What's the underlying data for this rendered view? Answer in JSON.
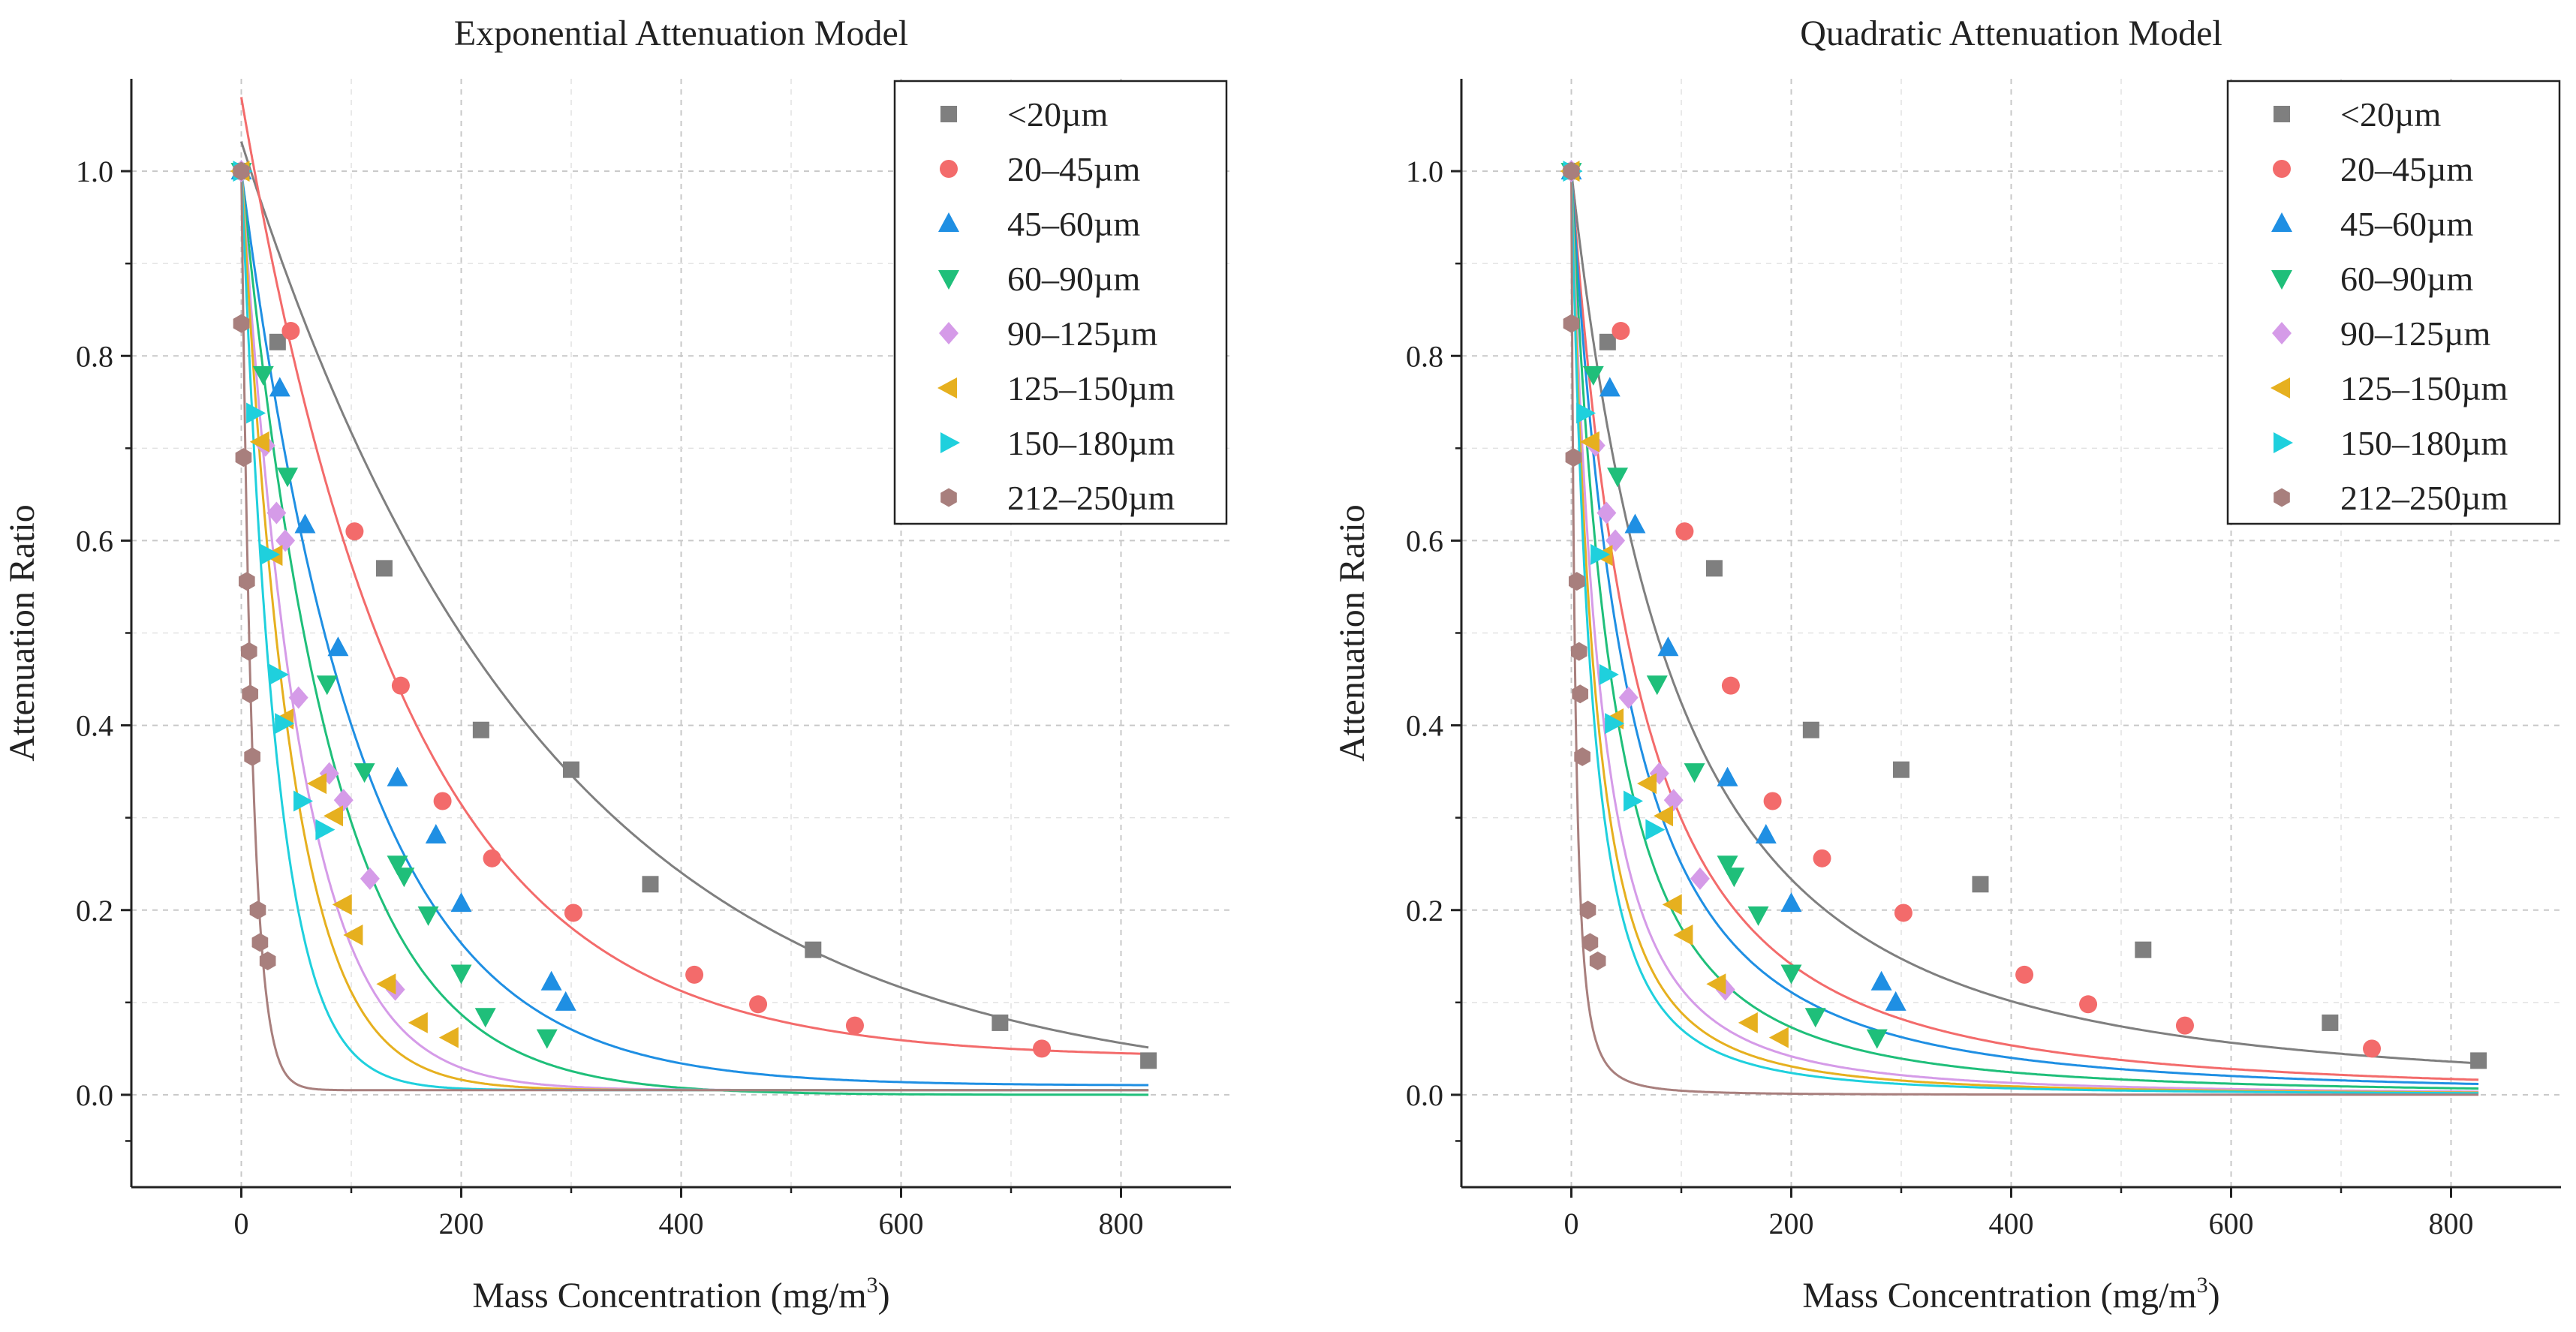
{
  "colors": {
    "<20µm": "#7f7f7f",
    "20–45µm": "#f36b6b",
    "45–60µm": "#1f8fe3",
    "60–90µm": "#1fbf7a",
    "90–125µm": "#d59be8",
    "125–150µm": "#e6b01f",
    "150–180µm": "#1fd0dd",
    "212–250µm": "#a87f7d"
  },
  "chart_data": [
    {
      "type": "scatter",
      "title": "Exponential Attenuation Model",
      "xlabel": "Mass Concentration (mg/m",
      "xlabel_sup": "3",
      "xlabel_end": ")",
      "ylabel": "Attenuation Ratio",
      "xlim": [
        -100,
        900
      ],
      "ylim": [
        -0.1,
        1.1
      ],
      "xticks": [
        0,
        200,
        400,
        600,
        800
      ],
      "yticks": [
        0.0,
        0.2,
        0.4,
        0.6,
        0.8,
        1.0
      ],
      "xtick_labels": [
        "0",
        "200",
        "400",
        "600",
        "800"
      ],
      "ytick_labels": [
        "0.0",
        "0.2",
        "0.4",
        "0.6",
        "0.8",
        "1.0"
      ],
      "legend_position": "top-right",
      "series": [
        {
          "name": "<20µm",
          "marker": "square",
          "x": [
            0,
            33,
            130,
            218,
            300,
            372,
            520,
            690,
            825
          ],
          "y": [
            1.0,
            0.815,
            0.57,
            0.395,
            0.352,
            0.228,
            0.157,
            0.078,
            0.037
          ],
          "fit": {
            "a": 1.032,
            "k": 0.00364,
            "c": 0.0
          }
        },
        {
          "name": "20–45µm",
          "marker": "circle",
          "x": [
            0,
            45,
            103,
            145,
            183,
            228,
            302,
            412,
            470,
            558,
            728
          ],
          "y": [
            1.0,
            0.827,
            0.61,
            0.443,
            0.318,
            0.256,
            0.197,
            0.13,
            0.098,
            0.075,
            0.05
          ],
          "fit": {
            "a": 1.04,
            "k": 0.00666,
            "c": 0.04
          }
        },
        {
          "name": "45–60µm",
          "marker": "triangle-up",
          "x": [
            0,
            35,
            58,
            88,
            142,
            177,
            200,
            282,
            295
          ],
          "y": [
            1.0,
            0.765,
            0.617,
            0.484,
            0.343,
            0.281,
            0.207,
            0.122,
            0.1
          ],
          "fit": {
            "a": 0.99,
            "k": 0.0093,
            "c": 0.01
          }
        },
        {
          "name": "60–90µm",
          "marker": "triangle-down",
          "x": [
            0,
            20,
            42,
            78,
            112,
            142,
            148,
            170,
            200,
            222,
            278
          ],
          "y": [
            1.0,
            0.78,
            0.67,
            0.445,
            0.35,
            0.25,
            0.237,
            0.195,
            0.132,
            0.085,
            0.062
          ],
          "fit": {
            "a": 1.0,
            "k": 0.0122,
            "c": 0.0
          }
        },
        {
          "name": "90–125µm",
          "marker": "diamond",
          "x": [
            0,
            22,
            32,
            40,
            52,
            80,
            93,
            117,
            140
          ],
          "y": [
            1.0,
            0.703,
            0.63,
            0.6,
            0.43,
            0.348,
            0.319,
            0.234,
            0.114
          ],
          "fit": {
            "a": 1.0,
            "k": 0.0186,
            "c": 0.005
          }
        },
        {
          "name": "125–150µm",
          "marker": "triangle-left",
          "x": [
            0,
            18,
            30,
            40,
            70,
            85,
            93,
            103,
            133,
            162,
            190
          ],
          "y": [
            1.0,
            0.707,
            0.584,
            0.407,
            0.337,
            0.302,
            0.206,
            0.173,
            0.12,
            0.078,
            0.062
          ],
          "fit": {
            "a": 1.0,
            "k": 0.0224,
            "c": 0.005
          }
        },
        {
          "name": "150–180µm",
          "marker": "triangle-right",
          "x": [
            0,
            12,
            25,
            33,
            38,
            55,
            75
          ],
          "y": [
            1.0,
            0.738,
            0.585,
            0.455,
            0.402,
            0.318,
            0.287
          ],
          "fit": {
            "a": 1.0,
            "k": 0.0316,
            "c": 0.005
          }
        },
        {
          "name": "212–250µm",
          "marker": "hexagon",
          "x": [
            0,
            0,
            2,
            5,
            7,
            8,
            10,
            15,
            17,
            24
          ],
          "y": [
            1.0,
            0.835,
            0.69,
            0.556,
            0.48,
            0.434,
            0.366,
            0.2,
            0.165,
            0.145
          ],
          "fit": {
            "a": 1.0,
            "k": 0.1,
            "c": 0.005
          }
        }
      ]
    },
    {
      "type": "scatter",
      "title": "Quadratic Attenuation Model",
      "xlabel": "Mass Concentration (mg/m",
      "xlabel_sup": "3",
      "xlabel_end": ")",
      "ylabel": "Attenuation Ratio",
      "xlim": [
        -100,
        900
      ],
      "ylim": [
        -0.1,
        1.1
      ],
      "xticks": [
        0,
        200,
        400,
        600,
        800
      ],
      "yticks": [
        0.0,
        0.2,
        0.4,
        0.6,
        0.8,
        1.0
      ],
      "xtick_labels": [
        "0",
        "200",
        "400",
        "600",
        "800"
      ],
      "ytick_labels": [
        "0.0",
        "0.2",
        "0.4",
        "0.6",
        "0.8",
        "1.0"
      ],
      "legend_position": "top-right",
      "series": [
        {
          "name": "<20µm",
          "marker": "square",
          "x": [
            0,
            33,
            130,
            218,
            300,
            372,
            520,
            690,
            825
          ],
          "y": [
            1.0,
            0.815,
            0.57,
            0.395,
            0.352,
            0.228,
            0.157,
            0.078,
            0.037
          ],
          "fit": {
            "b": 0.00535
          }
        },
        {
          "name": "20–45µm",
          "marker": "circle",
          "x": [
            0,
            45,
            103,
            145,
            183,
            228,
            302,
            412,
            470,
            558,
            728
          ],
          "y": [
            1.0,
            0.827,
            0.61,
            0.443,
            0.318,
            0.256,
            0.197,
            0.13,
            0.098,
            0.075,
            0.05
          ],
          "fit": {
            "b": 0.0083
          }
        },
        {
          "name": "45–60µm",
          "marker": "triangle-up",
          "x": [
            0,
            35,
            58,
            88,
            142,
            177,
            200,
            282,
            295
          ],
          "y": [
            1.0,
            0.765,
            0.617,
            0.484,
            0.343,
            0.281,
            0.207,
            0.122,
            0.1
          ],
          "fit": {
            "b": 0.01
          }
        },
        {
          "name": "60–90µm",
          "marker": "triangle-down",
          "x": [
            0,
            20,
            42,
            78,
            112,
            142,
            148,
            170,
            200,
            222,
            278
          ],
          "y": [
            1.0,
            0.78,
            0.67,
            0.445,
            0.35,
            0.25,
            0.237,
            0.195,
            0.132,
            0.085,
            0.062
          ],
          "fit": {
            "b": 0.0135
          }
        },
        {
          "name": "90–125µm",
          "marker": "diamond",
          "x": [
            0,
            22,
            32,
            40,
            52,
            80,
            93,
            117,
            140
          ],
          "y": [
            1.0,
            0.703,
            0.63,
            0.6,
            0.43,
            0.348,
            0.319,
            0.234,
            0.114
          ],
          "fit": {
            "b": 0.0195
          }
        },
        {
          "name": "125–150µm",
          "marker": "triangle-left",
          "x": [
            0,
            18,
            30,
            40,
            70,
            85,
            93,
            103,
            133,
            162,
            190
          ],
          "y": [
            1.0,
            0.707,
            0.584,
            0.407,
            0.337,
            0.302,
            0.206,
            0.173,
            0.12,
            0.078,
            0.062
          ],
          "fit": {
            "b": 0.0235
          }
        },
        {
          "name": "150–180µm",
          "marker": "triangle-right",
          "x": [
            0,
            12,
            25,
            33,
            38,
            55,
            75
          ],
          "y": [
            1.0,
            0.738,
            0.585,
            0.455,
            0.402,
            0.318,
            0.287
          ],
          "fit": {
            "b": 0.0275
          }
        },
        {
          "name": "212–250µm",
          "marker": "hexagon",
          "x": [
            0,
            0,
            2,
            5,
            7,
            8,
            10,
            15,
            17,
            24
          ],
          "y": [
            1.0,
            0.835,
            0.69,
            0.556,
            0.48,
            0.434,
            0.366,
            0.2,
            0.165,
            0.145
          ],
          "fit": {
            "b": 0.14
          }
        }
      ]
    }
  ]
}
